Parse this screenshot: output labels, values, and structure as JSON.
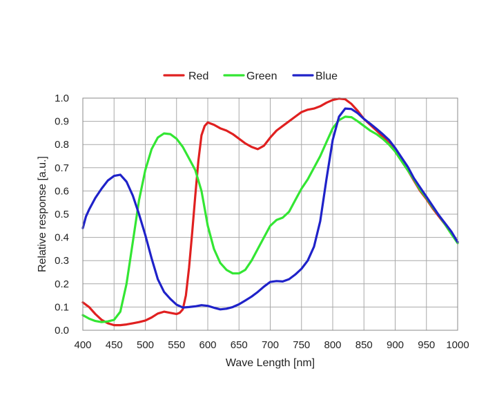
{
  "chart_data": {
    "type": "line",
    "title": "",
    "xlabel": "Wave Length [nm]",
    "ylabel": "Relative response [a.u.]",
    "xlim": [
      400,
      1000
    ],
    "ylim": [
      0,
      1.0
    ],
    "grid": true,
    "legend_position": "top-center",
    "x_ticks": [
      "400",
      "450",
      "500",
      "550",
      "600",
      "650",
      "700",
      "750",
      "800",
      "850",
      "900",
      "950",
      "1000"
    ],
    "x_tick_values": [
      400,
      450,
      500,
      550,
      600,
      650,
      700,
      750,
      800,
      850,
      900,
      950,
      1000
    ],
    "y_ticks": [
      "0.0",
      "0.1",
      "0.2",
      "0.3",
      "0.4",
      "0.5",
      "0.6",
      "0.7",
      "0.8",
      "0.9",
      "1.0"
    ],
    "y_tick_values": [
      0,
      0.1,
      0.2,
      0.3,
      0.4,
      0.5,
      0.6,
      0.7,
      0.8,
      0.9,
      1.0
    ],
    "series": [
      {
        "name": "Red",
        "color": "#e02020",
        "points": [
          [
            400,
            0.12
          ],
          [
            410,
            0.1
          ],
          [
            420,
            0.07
          ],
          [
            430,
            0.045
          ],
          [
            440,
            0.03
          ],
          [
            450,
            0.022
          ],
          [
            460,
            0.022
          ],
          [
            470,
            0.025
          ],
          [
            480,
            0.03
          ],
          [
            490,
            0.035
          ],
          [
            500,
            0.042
          ],
          [
            510,
            0.055
          ],
          [
            520,
            0.072
          ],
          [
            530,
            0.08
          ],
          [
            540,
            0.075
          ],
          [
            550,
            0.07
          ],
          [
            555,
            0.075
          ],
          [
            560,
            0.09
          ],
          [
            565,
            0.15
          ],
          [
            570,
            0.27
          ],
          [
            575,
            0.42
          ],
          [
            580,
            0.58
          ],
          [
            585,
            0.73
          ],
          [
            590,
            0.84
          ],
          [
            595,
            0.88
          ],
          [
            600,
            0.895
          ],
          [
            610,
            0.885
          ],
          [
            620,
            0.87
          ],
          [
            630,
            0.86
          ],
          [
            640,
            0.845
          ],
          [
            650,
            0.825
          ],
          [
            660,
            0.805
          ],
          [
            670,
            0.79
          ],
          [
            680,
            0.78
          ],
          [
            690,
            0.795
          ],
          [
            700,
            0.83
          ],
          [
            710,
            0.86
          ],
          [
            720,
            0.88
          ],
          [
            730,
            0.9
          ],
          [
            740,
            0.92
          ],
          [
            750,
            0.94
          ],
          [
            760,
            0.95
          ],
          [
            770,
            0.955
          ],
          [
            780,
            0.965
          ],
          [
            790,
            0.98
          ],
          [
            800,
            0.992
          ],
          [
            810,
            0.998
          ],
          [
            820,
            0.995
          ],
          [
            830,
            0.975
          ],
          [
            840,
            0.945
          ],
          [
            850,
            0.91
          ],
          [
            860,
            0.885
          ],
          [
            870,
            0.86
          ],
          [
            880,
            0.835
          ],
          [
            890,
            0.805
          ],
          [
            900,
            0.77
          ],
          [
            910,
            0.73
          ],
          [
            920,
            0.69
          ],
          [
            930,
            0.645
          ],
          [
            940,
            0.6
          ],
          [
            950,
            0.565
          ],
          [
            960,
            0.525
          ],
          [
            970,
            0.49
          ],
          [
            980,
            0.455
          ],
          [
            990,
            0.415
          ],
          [
            1000,
            0.38
          ]
        ]
      },
      {
        "name": "Green",
        "color": "#33e633",
        "points": [
          [
            400,
            0.065
          ],
          [
            410,
            0.05
          ],
          [
            420,
            0.04
          ],
          [
            430,
            0.035
          ],
          [
            440,
            0.038
          ],
          [
            450,
            0.045
          ],
          [
            460,
            0.08
          ],
          [
            470,
            0.2
          ],
          [
            480,
            0.38
          ],
          [
            490,
            0.56
          ],
          [
            500,
            0.69
          ],
          [
            510,
            0.78
          ],
          [
            520,
            0.83
          ],
          [
            530,
            0.848
          ],
          [
            540,
            0.845
          ],
          [
            550,
            0.825
          ],
          [
            560,
            0.79
          ],
          [
            570,
            0.74
          ],
          [
            580,
            0.69
          ],
          [
            590,
            0.6
          ],
          [
            600,
            0.45
          ],
          [
            610,
            0.35
          ],
          [
            620,
            0.29
          ],
          [
            630,
            0.26
          ],
          [
            640,
            0.245
          ],
          [
            650,
            0.245
          ],
          [
            660,
            0.26
          ],
          [
            670,
            0.3
          ],
          [
            680,
            0.35
          ],
          [
            690,
            0.4
          ],
          [
            700,
            0.45
          ],
          [
            710,
            0.475
          ],
          [
            720,
            0.485
          ],
          [
            730,
            0.51
          ],
          [
            740,
            0.56
          ],
          [
            750,
            0.61
          ],
          [
            760,
            0.65
          ],
          [
            770,
            0.7
          ],
          [
            780,
            0.75
          ],
          [
            790,
            0.81
          ],
          [
            800,
            0.87
          ],
          [
            810,
            0.905
          ],
          [
            820,
            0.92
          ],
          [
            830,
            0.918
          ],
          [
            840,
            0.9
          ],
          [
            850,
            0.88
          ],
          [
            860,
            0.86
          ],
          [
            870,
            0.845
          ],
          [
            880,
            0.825
          ],
          [
            890,
            0.8
          ],
          [
            900,
            0.77
          ],
          [
            910,
            0.73
          ],
          [
            920,
            0.69
          ],
          [
            930,
            0.65
          ],
          [
            940,
            0.605
          ],
          [
            950,
            0.57
          ],
          [
            960,
            0.53
          ],
          [
            970,
            0.495
          ],
          [
            980,
            0.455
          ],
          [
            990,
            0.415
          ],
          [
            1000,
            0.375
          ]
        ]
      },
      {
        "name": "Blue",
        "color": "#1f22c9",
        "points": [
          [
            400,
            0.44
          ],
          [
            405,
            0.49
          ],
          [
            410,
            0.52
          ],
          [
            420,
            0.57
          ],
          [
            430,
            0.61
          ],
          [
            440,
            0.645
          ],
          [
            450,
            0.665
          ],
          [
            460,
            0.67
          ],
          [
            470,
            0.64
          ],
          [
            480,
            0.58
          ],
          [
            490,
            0.5
          ],
          [
            500,
            0.41
          ],
          [
            510,
            0.31
          ],
          [
            520,
            0.22
          ],
          [
            530,
            0.165
          ],
          [
            540,
            0.135
          ],
          [
            550,
            0.11
          ],
          [
            560,
            0.098
          ],
          [
            570,
            0.1
          ],
          [
            580,
            0.103
          ],
          [
            590,
            0.108
          ],
          [
            600,
            0.105
          ],
          [
            610,
            0.097
          ],
          [
            620,
            0.09
          ],
          [
            630,
            0.093
          ],
          [
            640,
            0.1
          ],
          [
            650,
            0.112
          ],
          [
            660,
            0.128
          ],
          [
            670,
            0.145
          ],
          [
            680,
            0.165
          ],
          [
            690,
            0.188
          ],
          [
            700,
            0.208
          ],
          [
            710,
            0.212
          ],
          [
            720,
            0.21
          ],
          [
            730,
            0.22
          ],
          [
            740,
            0.24
          ],
          [
            750,
            0.265
          ],
          [
            760,
            0.3
          ],
          [
            770,
            0.36
          ],
          [
            780,
            0.47
          ],
          [
            790,
            0.65
          ],
          [
            800,
            0.82
          ],
          [
            810,
            0.92
          ],
          [
            820,
            0.955
          ],
          [
            830,
            0.953
          ],
          [
            840,
            0.935
          ],
          [
            850,
            0.91
          ],
          [
            860,
            0.89
          ],
          [
            870,
            0.868
          ],
          [
            880,
            0.845
          ],
          [
            890,
            0.82
          ],
          [
            900,
            0.785
          ],
          [
            910,
            0.745
          ],
          [
            920,
            0.705
          ],
          [
            930,
            0.655
          ],
          [
            940,
            0.615
          ],
          [
            950,
            0.575
          ],
          [
            960,
            0.535
          ],
          [
            970,
            0.495
          ],
          [
            980,
            0.46
          ],
          [
            990,
            0.425
          ],
          [
            1000,
            0.38
          ]
        ]
      }
    ]
  }
}
